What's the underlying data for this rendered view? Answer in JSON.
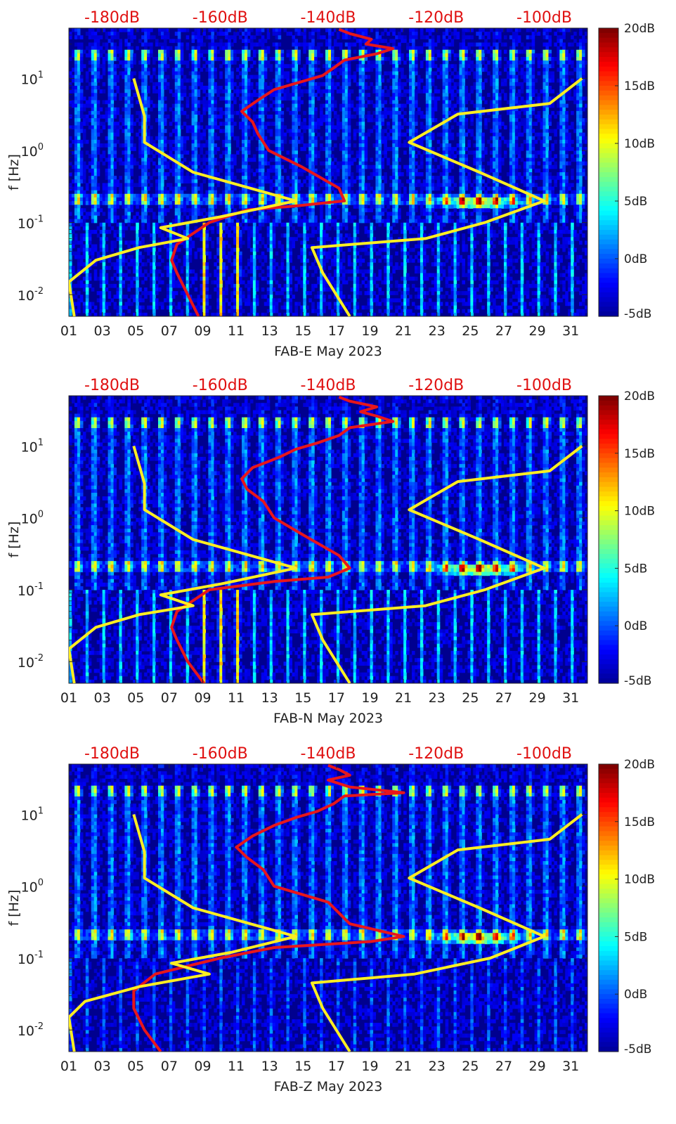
{
  "figure": {
    "colormap": [
      "#00008f",
      "#0000ff",
      "#0080ff",
      "#00ffff",
      "#80ff80",
      "#ffff00",
      "#ff8000",
      "#ff0000",
      "#800000"
    ],
    "colors": {
      "red_curve": "#e8161b",
      "yellow_curve": "#ffee22",
      "top_labels": "#e01010",
      "text": "#222222"
    }
  },
  "chart_data": [
    {
      "type": "heatmap",
      "title": "",
      "xlabel": "FAB-E May 2023",
      "ylabel": "f [Hz]",
      "x_ticks": [
        "01",
        "03",
        "05",
        "07",
        "09",
        "11",
        "13",
        "15",
        "17",
        "19",
        "21",
        "23",
        "25",
        "27",
        "29",
        "31"
      ],
      "y_ticks": [
        "10^-2",
        "10^-1",
        "10^0",
        "10^1"
      ],
      "xlim": [
        1,
        32
      ],
      "ylim": [
        0.005,
        50
      ],
      "yscale": "log",
      "top_axis": {
        "ticks": [
          "-180dB",
          "-160dB",
          "-140dB",
          "-120dB",
          "-100dB"
        ],
        "values": [
          -180,
          -160,
          -140,
          -120,
          -100
        ],
        "lim": [
          -188,
          -92
        ]
      },
      "colorbar": {
        "ticks": [
          "20dB",
          "15dB",
          "10dB",
          "5dB",
          "0dB",
          "-5dB"
        ],
        "values": [
          20,
          15,
          10,
          5,
          0,
          -5
        ],
        "range": [
          -5,
          20
        ]
      },
      "series": [
        {
          "name": "",
          "color": "#e8161b",
          "points": [
            [
              -164,
              0.005
            ],
            [
              -166,
              0.01
            ],
            [
              -168,
              0.02
            ],
            [
              -169,
              0.03
            ],
            [
              -168,
              0.05
            ],
            [
              -162,
              0.1
            ],
            [
              -155,
              0.15
            ],
            [
              -146,
              0.17
            ],
            [
              -137,
              0.2
            ],
            [
              -138,
              0.3
            ],
            [
              -145,
              0.6
            ],
            [
              -151,
              1
            ],
            [
              -153,
              1.7
            ],
            [
              -154,
              2.5
            ],
            [
              -156,
              3.5
            ],
            [
              -153,
              5
            ],
            [
              -150,
              7
            ],
            [
              -145,
              9
            ],
            [
              -141,
              11
            ],
            [
              -139,
              14
            ],
            [
              -137,
              18
            ],
            [
              -131,
              22
            ],
            [
              -128,
              26
            ],
            [
              -133,
              30
            ],
            [
              -132,
              35
            ],
            [
              -136,
              42
            ],
            [
              -138,
              48
            ]
          ]
        },
        {
          "name": "",
          "color": "#ffee22",
          "points": [
            [
              -187,
              0.005
            ],
            [
              -188,
              0.015
            ],
            [
              -183,
              0.03
            ],
            [
              -175,
              0.045
            ],
            [
              -166,
              0.06
            ],
            [
              -171,
              0.085
            ],
            [
              -160,
              0.12
            ],
            [
              -146,
              0.2
            ],
            [
              -165,
              0.5
            ],
            [
              -174,
              1.3
            ],
            [
              -174,
              3
            ],
            [
              -176,
              10
            ]
          ]
        },
        {
          "name": "",
          "color": "#ffee22",
          "points": [
            [
              -136,
              0.005
            ],
            [
              -141,
              0.02
            ],
            [
              -143,
              0.045
            ],
            [
              -122,
              0.06
            ],
            [
              -111,
              0.1
            ],
            [
              -100,
              0.2
            ],
            [
              -112,
              0.5
            ],
            [
              -125,
              1.3
            ],
            [
              -116,
              3.2
            ],
            [
              -99,
              4.5
            ],
            [
              -93,
              10
            ]
          ]
        }
      ]
    },
    {
      "type": "heatmap",
      "title": "",
      "xlabel": "FAB-N May 2023",
      "ylabel": "f [Hz]",
      "x_ticks": [
        "01",
        "03",
        "05",
        "07",
        "09",
        "11",
        "13",
        "15",
        "17",
        "19",
        "21",
        "23",
        "25",
        "27",
        "29",
        "31"
      ],
      "y_ticks": [
        "10^-2",
        "10^-1",
        "10^0",
        "10^1"
      ],
      "xlim": [
        1,
        32
      ],
      "ylim": [
        0.005,
        50
      ],
      "yscale": "log",
      "top_axis": {
        "ticks": [
          "-180dB",
          "-160dB",
          "-140dB",
          "-120dB",
          "-100dB"
        ],
        "values": [
          -180,
          -160,
          -140,
          -120,
          -100
        ],
        "lim": [
          -188,
          -92
        ]
      },
      "colorbar": {
        "ticks": [
          "20dB",
          "15dB",
          "10dB",
          "5dB",
          "0dB",
          "-5dB"
        ],
        "values": [
          20,
          15,
          10,
          5,
          0,
          -5
        ],
        "range": [
          -5,
          20
        ]
      },
      "series": [
        {
          "name": "",
          "color": "#e8161b",
          "points": [
            [
              -163,
              0.005
            ],
            [
              -166,
              0.01
            ],
            [
              -168,
              0.02
            ],
            [
              -169,
              0.03
            ],
            [
              -168,
              0.05
            ],
            [
              -162,
              0.1
            ],
            [
              -150,
              0.13
            ],
            [
              -140,
              0.15
            ],
            [
              -136,
              0.2
            ],
            [
              -138,
              0.3
            ],
            [
              -145,
              0.6
            ],
            [
              -150,
              1
            ],
            [
              -152,
              1.7
            ],
            [
              -155,
              2.5
            ],
            [
              -156,
              3.5
            ],
            [
              -154,
              5
            ],
            [
              -149,
              7
            ],
            [
              -146,
              9
            ],
            [
              -142,
              11
            ],
            [
              -138,
              14
            ],
            [
              -136,
              18
            ],
            [
              -128,
              22
            ],
            [
              -131,
              26
            ],
            [
              -134,
              30
            ],
            [
              -131,
              35
            ],
            [
              -136,
              42
            ],
            [
              -138,
              48
            ]
          ]
        },
        {
          "name": "",
          "color": "#ffee22",
          "points": [
            [
              -187,
              0.005
            ],
            [
              -188,
              0.015
            ],
            [
              -183,
              0.03
            ],
            [
              -175,
              0.045
            ],
            [
              -165,
              0.06
            ],
            [
              -171,
              0.085
            ],
            [
              -160,
              0.12
            ],
            [
              -146,
              0.2
            ],
            [
              -165,
              0.5
            ],
            [
              -174,
              1.3
            ],
            [
              -174,
              3
            ],
            [
              -176,
              10
            ]
          ]
        },
        {
          "name": "",
          "color": "#ffee22",
          "points": [
            [
              -136,
              0.005
            ],
            [
              -141,
              0.02
            ],
            [
              -143,
              0.045
            ],
            [
              -122,
              0.06
            ],
            [
              -111,
              0.1
            ],
            [
              -100,
              0.2
            ],
            [
              -112,
              0.5
            ],
            [
              -125,
              1.3
            ],
            [
              -116,
              3.2
            ],
            [
              -99,
              4.5
            ],
            [
              -93,
              10
            ]
          ]
        }
      ]
    },
    {
      "type": "heatmap",
      "title": "",
      "xlabel": "FAB-Z May 2023",
      "ylabel": "f [Hz]",
      "x_ticks": [
        "01",
        "03",
        "05",
        "07",
        "09",
        "11",
        "13",
        "15",
        "17",
        "19",
        "21",
        "23",
        "25",
        "27",
        "29",
        "31"
      ],
      "y_ticks": [
        "10^-2",
        "10^-1",
        "10^0",
        "10^1"
      ],
      "xlim": [
        1,
        32
      ],
      "ylim": [
        0.005,
        50
      ],
      "yscale": "log",
      "top_axis": {
        "ticks": [
          "-180dB",
          "-160dB",
          "-140dB",
          "-120dB",
          "-100dB"
        ],
        "values": [
          -180,
          -160,
          -140,
          -120,
          -100
        ],
        "lim": [
          -188,
          -92
        ]
      },
      "colorbar": {
        "ticks": [
          "20dB",
          "15dB",
          "10dB",
          "5dB",
          "0dB",
          "-5dB"
        ],
        "values": [
          20,
          15,
          10,
          5,
          0,
          -5
        ],
        "range": [
          -5,
          20
        ]
      },
      "series": [
        {
          "name": "",
          "color": "#e8161b",
          "points": [
            [
              -171,
              0.005
            ],
            [
              -174,
              0.01
            ],
            [
              -176,
              0.02
            ],
            [
              -176,
              0.035
            ],
            [
              -172,
              0.06
            ],
            [
              -160,
              0.1
            ],
            [
              -150,
              0.14
            ],
            [
              -132,
              0.17
            ],
            [
              -126,
              0.2
            ],
            [
              -136,
              0.3
            ],
            [
              -140,
              0.6
            ],
            [
              -150,
              1
            ],
            [
              -152,
              1.7
            ],
            [
              -155,
              2.5
            ],
            [
              -157,
              3.5
            ],
            [
              -154,
              5
            ],
            [
              -150,
              7
            ],
            [
              -146,
              9
            ],
            [
              -142,
              11
            ],
            [
              -139,
              14
            ],
            [
              -137,
              18
            ],
            [
              -126,
              20
            ],
            [
              -136,
              24
            ],
            [
              -140,
              30
            ],
            [
              -136,
              35
            ],
            [
              -138,
              42
            ],
            [
              -140,
              48
            ]
          ]
        },
        {
          "name": "",
          "color": "#ffee22",
          "points": [
            [
              -187,
              0.005
            ],
            [
              -188,
              0.015
            ],
            [
              -185,
              0.025
            ],
            [
              -175,
              0.04
            ],
            [
              -162,
              0.06
            ],
            [
              -169,
              0.085
            ],
            [
              -158,
              0.12
            ],
            [
              -146,
              0.2
            ],
            [
              -165,
              0.5
            ],
            [
              -174,
              1.3
            ],
            [
              -174,
              3
            ],
            [
              -176,
              10
            ]
          ]
        },
        {
          "name": "",
          "color": "#ffee22",
          "points": [
            [
              -136,
              0.005
            ],
            [
              -141,
              0.02
            ],
            [
              -143,
              0.045
            ],
            [
              -124,
              0.06
            ],
            [
              -110,
              0.1
            ],
            [
              -100,
              0.2
            ],
            [
              -112,
              0.5
            ],
            [
              -125,
              1.3
            ],
            [
              -116,
              3.2
            ],
            [
              -99,
              4.5
            ],
            [
              -93,
              10
            ]
          ]
        }
      ]
    }
  ]
}
